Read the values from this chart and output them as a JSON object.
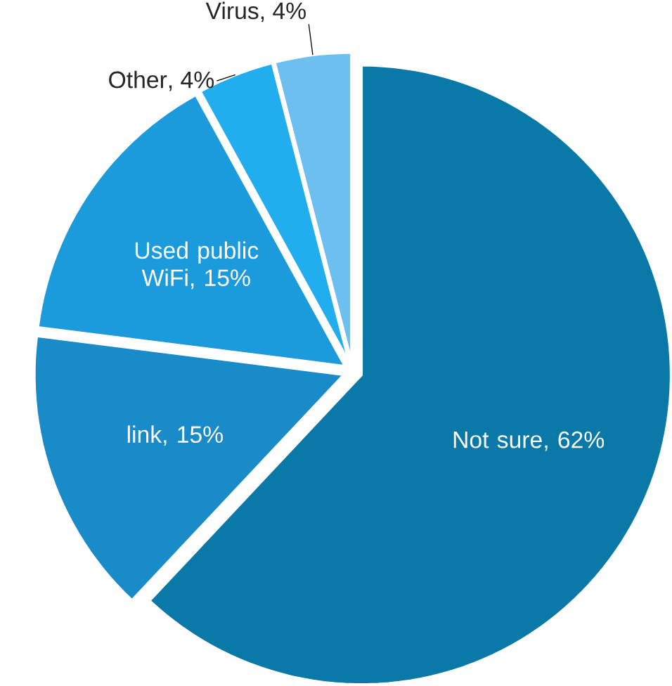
{
  "chart_data": {
    "type": "pie",
    "categories": [
      "Not sure",
      "link",
      "Used public WiFi",
      "Other",
      "Virus"
    ],
    "values": [
      62,
      15,
      15,
      4,
      4
    ],
    "value_labels": [
      ", 62%",
      ", 15%",
      ", 15%",
      ", 4%",
      ", 4%"
    ],
    "colors": [
      "#0b79a8",
      "#1a8bc9",
      "#1b9bdc",
      "#22aeee",
      "#6cbfee"
    ]
  }
}
